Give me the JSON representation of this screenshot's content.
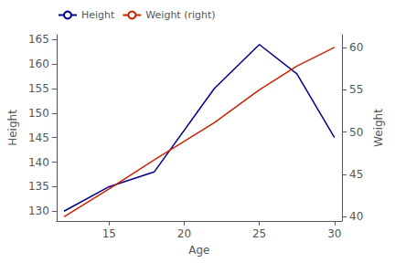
{
  "chart_data": {
    "type": "line",
    "xlabel": "Age",
    "ylabel": "Height",
    "y2label": "Weight",
    "x": [
      12,
      15,
      18,
      22,
      25,
      27.5,
      30
    ],
    "series": [
      {
        "name": "Height",
        "color": "#00008B",
        "values": [
          130,
          135,
          138,
          155,
          164,
          158,
          145
        ]
      },
      {
        "name": "Weight (right)",
        "color": "#CC2200",
        "values": [
          40,
          43.3,
          46.7,
          51.1,
          55.0,
          57.8,
          60.0
        ],
        "axis": "y2"
      }
    ],
    "xlim": [
      11.5,
      30.5
    ],
    "xticks": [
      15,
      20,
      25,
      30
    ],
    "ylim": [
      128,
      166
    ],
    "yticks": [
      130,
      135,
      140,
      145,
      150,
      155,
      160,
      165
    ],
    "y2lim": [
      39.5,
      61.5
    ],
    "y2ticks": [
      40,
      45,
      50,
      55,
      60
    ],
    "grid": false,
    "legend": "upper left"
  }
}
